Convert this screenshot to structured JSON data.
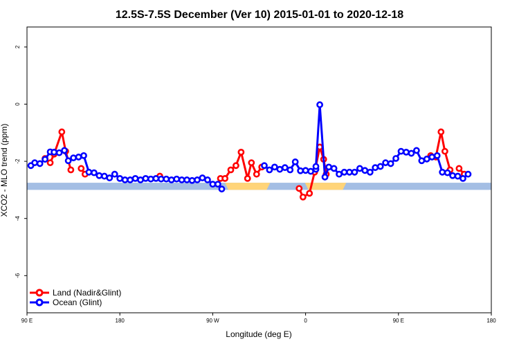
{
  "chart_data": {
    "type": "line",
    "title": "12.5S-7.5S December (Ver 10)   2015-01-01 to 2020-12-18",
    "xlabel": "Longitude (deg E)",
    "ylabel": "XCO2 - MLO trend (ppm)",
    "xlim": [
      90,
      450
    ],
    "ylim": [
      -7.3,
      2.7
    ],
    "x_ticks": [
      {
        "value": 90,
        "label": "90 E"
      },
      {
        "value": 162,
        "label": "180"
      },
      {
        "value": 234,
        "label": "90 W"
      },
      {
        "value": 306,
        "label": "0"
      },
      {
        "value": 378,
        "label": "90 E"
      },
      {
        "value": 450,
        "label": "180"
      }
    ],
    "y_ticks": [
      {
        "value": 2,
        "label": "2"
      },
      {
        "value": 0,
        "label": "0"
      },
      {
        "value": -2,
        "label": "-2"
      },
      {
        "value": -4,
        "label": "-4"
      },
      {
        "value": -6,
        "label": "-6"
      }
    ],
    "grid": false,
    "legend_position": "bottom-left",
    "colors": {
      "land": "#ff0000",
      "ocean": "#0000ff",
      "map_ocean": "#a4bee4",
      "map_land": "#ffd479"
    },
    "map_band": {
      "top": -2.75,
      "bottom": -3.0
    },
    "map_land_ranges": [
      [
        243.5,
        278.5
      ],
      [
        305.5,
        337.5
      ]
    ],
    "series": [
      {
        "name": "Land (Nadir&Glint)",
        "color": "#ff0000",
        "segments": [
          [
            [
              104,
              -1.9
            ],
            [
              108,
              -2.05
            ],
            [
              111,
              -1.75
            ],
            [
              117,
              -0.97
            ],
            [
              120,
              -1.65
            ],
            [
              124,
              -2.3
            ]
          ],
          [
            [
              132,
              -2.25
            ],
            [
              135,
              -2.45
            ]
          ],
          [
            [
              193,
              -2.52
            ]
          ],
          [
            [
              240,
              -2.6
            ],
            [
              243.5,
              -2.6
            ],
            [
              248,
              -2.3
            ],
            [
              252,
              -2.15
            ],
            [
              256,
              -1.68
            ],
            [
              261,
              -2.6
            ],
            [
              264,
              -2.05
            ],
            [
              268,
              -2.45
            ],
            [
              272,
              -2.2
            ]
          ],
          [
            [
              301,
              -2.95
            ],
            [
              304,
              -3.25
            ],
            [
              309,
              -3.12
            ],
            [
              313,
              -2.38
            ],
            [
              317,
              -1.5
            ],
            [
              320,
              -1.93
            ],
            [
              322,
              -2.45
            ]
          ],
          [
            [
              403,
              -1.8
            ],
            [
              407,
              -1.85
            ],
            [
              411,
              -0.97
            ],
            [
              414,
              -1.65
            ],
            [
              418,
              -2.3
            ]
          ],
          [
            [
              425,
              -2.25
            ],
            [
              429,
              -2.45
            ]
          ]
        ]
      },
      {
        "name": "Ocean (Glint)",
        "color": "#0000ff",
        "segments": [
          [
            [
              93,
              -2.15
            ],
            [
              96,
              -2.05
            ],
            [
              100,
              -2.08
            ],
            [
              104,
              -1.93
            ],
            [
              108,
              -1.67
            ],
            [
              111,
              -1.68
            ],
            [
              115,
              -1.7
            ],
            [
              119,
              -1.62
            ],
            [
              122,
              -1.98
            ],
            [
              126,
              -1.88
            ],
            [
              130,
              -1.85
            ],
            [
              134,
              -1.8
            ],
            [
              138,
              -2.38
            ],
            [
              142,
              -2.4
            ],
            [
              146,
              -2.5
            ],
            [
              150,
              -2.52
            ],
            [
              154,
              -2.58
            ],
            [
              158,
              -2.45
            ],
            [
              162,
              -2.6
            ],
            [
              166,
              -2.65
            ],
            [
              170,
              -2.65
            ],
            [
              174,
              -2.6
            ],
            [
              178,
              -2.65
            ],
            [
              182,
              -2.6
            ],
            [
              186,
              -2.62
            ],
            [
              190,
              -2.6
            ],
            [
              194,
              -2.62
            ],
            [
              198,
              -2.62
            ],
            [
              202,
              -2.65
            ],
            [
              206,
              -2.62
            ],
            [
              210,
              -2.65
            ],
            [
              214,
              -2.65
            ],
            [
              218,
              -2.67
            ],
            [
              222,
              -2.65
            ],
            [
              226,
              -2.58
            ],
            [
              230,
              -2.65
            ],
            [
              234,
              -2.8
            ],
            [
              238,
              -2.8
            ],
            [
              241,
              -2.97
            ]
          ],
          [
            [
              274,
              -2.15
            ],
            [
              278,
              -2.3
            ],
            [
              282,
              -2.2
            ],
            [
              286,
              -2.28
            ],
            [
              290,
              -2.22
            ],
            [
              294,
              -2.3
            ],
            [
              298,
              -2.02
            ],
            [
              302,
              -2.33
            ],
            [
              306,
              -2.32
            ],
            [
              310,
              -2.35
            ],
            [
              314,
              -2.28
            ]
          ],
          [
            [
              314,
              -2.18
            ],
            [
              317,
              -0.02
            ],
            [
              321,
              -2.55
            ],
            [
              324,
              -2.2
            ],
            [
              328,
              -2.25
            ],
            [
              332,
              -2.45
            ],
            [
              336,
              -2.38
            ],
            [
              340,
              -2.38
            ],
            [
              344,
              -2.38
            ],
            [
              348,
              -2.25
            ],
            [
              352,
              -2.32
            ],
            [
              356,
              -2.38
            ],
            [
              360,
              -2.22
            ],
            [
              364,
              -2.18
            ],
            [
              368,
              -2.05
            ],
            [
              372,
              -2.08
            ],
            [
              376,
              -1.9
            ],
            [
              380,
              -1.65
            ],
            [
              384,
              -1.68
            ],
            [
              388,
              -1.72
            ],
            [
              392,
              -1.62
            ],
            [
              396,
              -1.98
            ],
            [
              400,
              -1.92
            ],
            [
              404,
              -1.85
            ],
            [
              408,
              -1.8
            ],
            [
              412,
              -2.38
            ],
            [
              416,
              -2.4
            ],
            [
              420,
              -2.5
            ],
            [
              424,
              -2.52
            ],
            [
              428,
              -2.6
            ],
            [
              432,
              -2.45
            ]
          ]
        ]
      }
    ]
  }
}
